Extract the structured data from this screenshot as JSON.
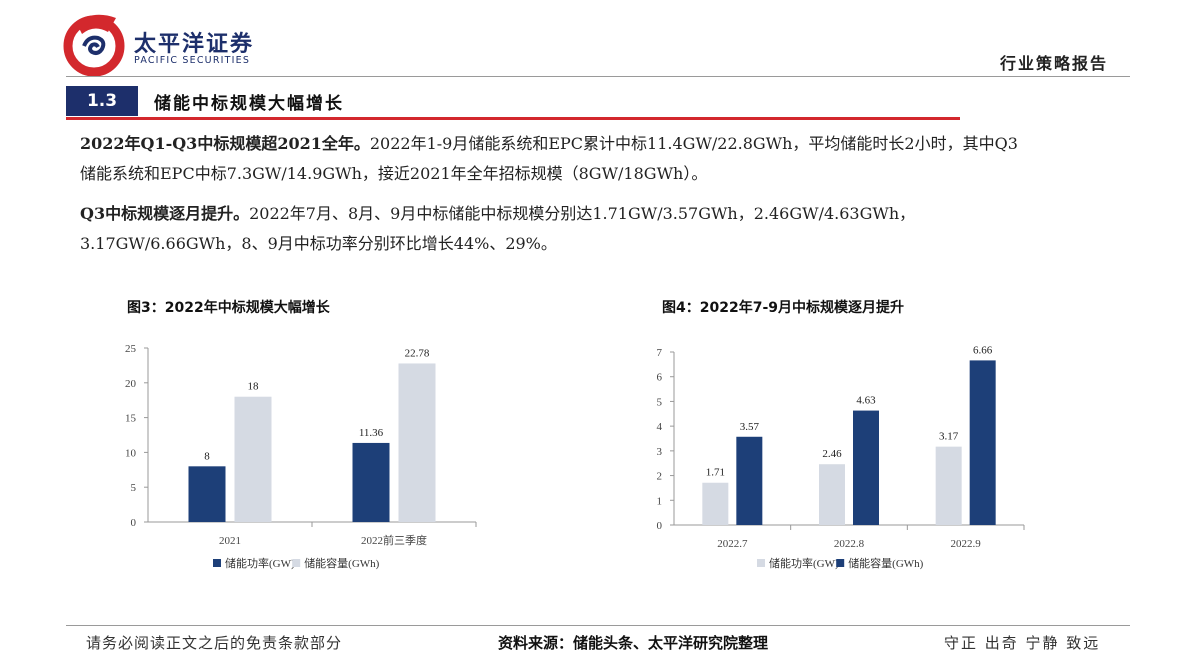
{
  "header": {
    "brand_cn": "太平洋证券",
    "brand_en": "PACIFIC SECURITIES",
    "report_type": "行业策略报告",
    "colors": {
      "navy": "#1d2f6b",
      "red": "#d3282d"
    }
  },
  "section": {
    "number": "1.3",
    "title": "储能中标规模大幅增长"
  },
  "paragraphs": [
    {
      "lead": "2022年Q1-Q3中标规模超2021全年。",
      "line1_rest": "2022年1-9月储能系统和EPC累计中标11.4GW/22.8GWh，平均储能时长2小时，其中Q3",
      "line2": "储能系统和EPC中标7.3GW/14.9GWh，接近2021年全年招标规模（8GW/18GWh）。"
    },
    {
      "lead": "Q3中标规模逐月提升。",
      "line1_rest": "2022年7月、8月、9月中标储能中标规模分别达1.71GW/3.57GWh，2.46GW/4.63GWh，",
      "line2": "3.17GW/6.66GWh，8、9月中标功率分别环比增长44%、29%。"
    }
  ],
  "chart_data": [
    {
      "type": "bar",
      "title": "图3：2022年中标规模大幅增长",
      "categories": [
        "2021",
        "2022前三季度"
      ],
      "series": [
        {
          "name": "储能功率(GW)",
          "values": [
            8,
            11.36
          ],
          "data_labels": [
            "8",
            "11.36"
          ],
          "color": "#1d3f78"
        },
        {
          "name": "储能容量(GWh)",
          "values": [
            18,
            22.78
          ],
          "data_labels": [
            "18",
            "22.78"
          ],
          "color": "#d5dae3"
        }
      ],
      "yticks": [
        "0",
        "5",
        "10",
        "15",
        "20",
        "25"
      ],
      "ylim": [
        0,
        25
      ],
      "grid": false,
      "legend": "bottom"
    },
    {
      "type": "bar",
      "title": "图4：2022年7-9月中标规模逐月提升",
      "categories": [
        "2022.7",
        "2022.8",
        "2022.9"
      ],
      "series": [
        {
          "name": "储能功率(GW)",
          "values": [
            1.71,
            2.46,
            3.17
          ],
          "data_labels": [
            "1.71",
            "2.46",
            "3.17"
          ],
          "color": "#d5dae3"
        },
        {
          "name": "储能容量(GWh)",
          "values": [
            3.57,
            4.63,
            6.66
          ],
          "data_labels": [
            "3.57",
            "4.63",
            "6.66"
          ],
          "color": "#1d3f78"
        }
      ],
      "yticks": [
        "0",
        "1",
        "2",
        "3",
        "4",
        "5",
        "6",
        "7"
      ],
      "ylim": [
        0,
        7
      ],
      "grid": false,
      "legend": "bottom"
    }
  ],
  "footer": {
    "disclaimer": "请务必阅读正文之后的免责条款部分",
    "source": "资料来源：储能头条、太平洋研究院整理",
    "motto": "守正 出奇 宁静 致远"
  }
}
